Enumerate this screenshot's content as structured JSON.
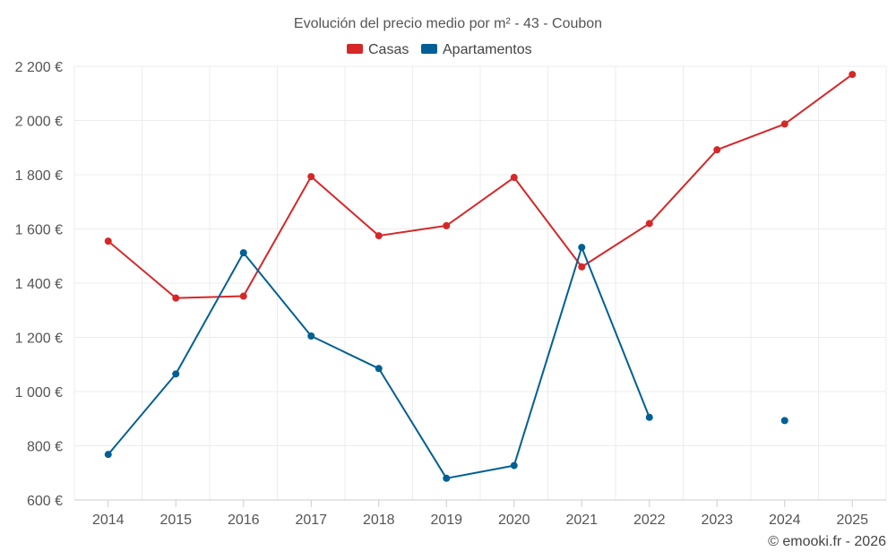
{
  "chart_data": {
    "type": "line",
    "title": "Evolución del precio medio por m² - 43 - Coubon",
    "categories": [
      "2014",
      "2015",
      "2016",
      "2017",
      "2018",
      "2019",
      "2020",
      "2021",
      "2022",
      "2023",
      "2024",
      "2025"
    ],
    "series": [
      {
        "name": "Casas",
        "color": "#d62728",
        "values": [
          1555,
          1345,
          1352,
          1793,
          1575,
          1612,
          1790,
          1460,
          1620,
          1892,
          1987,
          2170
        ]
      },
      {
        "name": "Apartamentos",
        "color": "#005f94",
        "values": [
          768,
          1065,
          1512,
          1205,
          1085,
          680,
          727,
          1532,
          905,
          null,
          893,
          null
        ]
      }
    ],
    "ylim": [
      600,
      2200
    ],
    "yticks": [
      600,
      800,
      1000,
      1200,
      1400,
      1600,
      1800,
      2000,
      2200
    ],
    "ytick_labels": [
      "600 €",
      "800 €",
      "1 000 €",
      "1 200 €",
      "1 400 €",
      "1 600 €",
      "1 800 €",
      "2 000 €",
      "2 200 €"
    ],
    "xlabel": "",
    "ylabel": "",
    "grid": true,
    "legend_position": "top-center"
  },
  "credit": "© emooki.fr - 2026"
}
